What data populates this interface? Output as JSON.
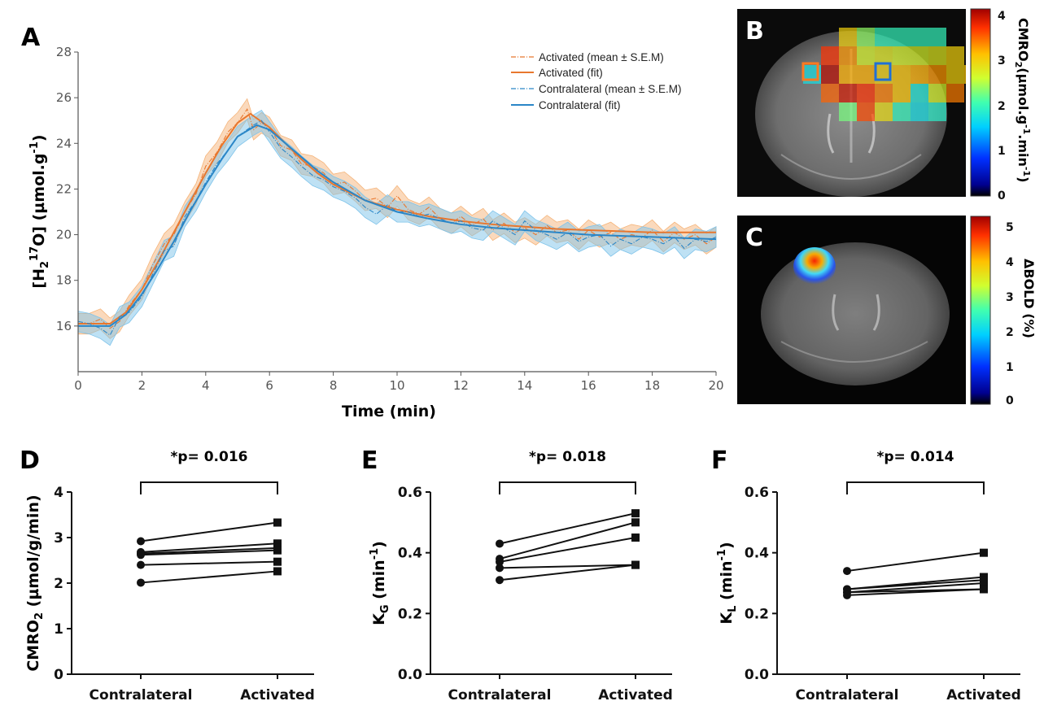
{
  "panels": {
    "A": "A",
    "B": "B",
    "C": "C",
    "D": "D",
    "E": "E",
    "F": "F"
  },
  "colors": {
    "activated": "#e8772e",
    "activated_band": "#f5b47a",
    "contralateral": "#2a86c7",
    "contralateral_band": "#7ec3ea"
  },
  "chart_data": [
    {
      "panel": "A",
      "type": "line",
      "xlabel": "Time (min)",
      "ylabel_parts": [
        "[H",
        "2",
        "17",
        "O] (µmol.g",
        "-1",
        ")"
      ],
      "xlim": [
        0,
        20
      ],
      "ylim": [
        14,
        28
      ],
      "xticks": [
        0,
        2,
        4,
        6,
        8,
        10,
        12,
        14,
        16,
        18,
        20
      ],
      "yticks": [
        16,
        18,
        20,
        22,
        24,
        26,
        28
      ],
      "legend": [
        "Activated (mean ± S.E.M)",
        "Activated (fit)",
        "Contralateral (mean ± S.E.M)",
        "Contralateral (fit)"
      ],
      "legend_position": "top-right",
      "series": [
        {
          "name": "Activated (mean ± S.E.M)",
          "style": "dashdot",
          "x": [
            0,
            0.35,
            0.7,
            1,
            1.3,
            1.6,
            2,
            2.35,
            2.7,
            3,
            3.35,
            3.7,
            4,
            4.35,
            4.7,
            5,
            5.3,
            5.5,
            5.75,
            6,
            6.35,
            6.7,
            7,
            7.35,
            7.7,
            8,
            8.35,
            8.7,
            9,
            9.35,
            9.7,
            10,
            10.35,
            10.7,
            11,
            11.35,
            11.7,
            12,
            12.35,
            12.7,
            13,
            13.35,
            13.7,
            14,
            14.35,
            14.7,
            15,
            15.35,
            15.7,
            16,
            16.35,
            16.7,
            17,
            17.35,
            17.7,
            18,
            18.35,
            18.7,
            19,
            19.35,
            19.7,
            20
          ],
          "y": [
            16.1,
            16.1,
            16.3,
            15.9,
            16.2,
            16.9,
            17.6,
            18.7,
            19.6,
            20.0,
            21.0,
            21.8,
            23.0,
            23.6,
            24.5,
            24.9,
            25.5,
            24.6,
            24.9,
            24.7,
            23.9,
            23.7,
            23.1,
            23.0,
            22.7,
            22.2,
            22.3,
            21.9,
            21.5,
            21.6,
            21.2,
            21.7,
            21.1,
            20.9,
            21.2,
            20.7,
            20.5,
            20.8,
            20.4,
            20.7,
            20.2,
            20.5,
            20.1,
            20.3,
            20.0,
            20.4,
            20.1,
            20.2,
            19.8,
            20.2,
            19.9,
            20.1,
            19.8,
            20.0,
            19.9,
            20.2,
            19.7,
            20.1,
            19.8,
            20.0,
            19.6,
            19.9
          ],
          "sem": 0.45
        },
        {
          "name": "Activated (fit)",
          "style": "solid",
          "x": [
            0,
            0.5,
            1,
            1.5,
            2,
            2.5,
            3,
            3.5,
            4,
            4.5,
            5,
            5.4,
            6,
            6.5,
            7,
            7.5,
            8,
            9,
            10,
            11,
            12,
            13,
            14,
            15,
            16,
            17,
            18,
            19,
            20
          ],
          "y": [
            16.1,
            16.1,
            16.1,
            16.6,
            17.6,
            18.8,
            20.1,
            21.4,
            22.7,
            23.9,
            24.9,
            25.3,
            24.7,
            24.0,
            23.3,
            22.7,
            22.2,
            21.5,
            21.1,
            20.8,
            20.6,
            20.45,
            20.35,
            20.25,
            20.2,
            20.15,
            20.1,
            20.1,
            20.1
          ]
        },
        {
          "name": "Contralateral (mean ± S.E.M)",
          "style": "dashdot",
          "x": [
            0,
            0.35,
            0.7,
            1,
            1.3,
            1.6,
            2,
            2.35,
            2.7,
            3,
            3.35,
            3.7,
            4,
            4.35,
            4.7,
            5,
            5.3,
            5.5,
            5.75,
            6,
            6.35,
            6.7,
            7,
            7.35,
            7.7,
            8,
            8.35,
            8.7,
            9,
            9.35,
            9.7,
            10,
            10.35,
            10.7,
            11,
            11.35,
            11.7,
            12,
            12.35,
            12.7,
            13,
            13.35,
            13.7,
            14,
            14.35,
            14.7,
            15,
            15.35,
            15.7,
            16,
            16.35,
            16.7,
            17,
            17.35,
            17.7,
            18,
            18.35,
            18.7,
            19,
            19.35,
            19.7,
            20
          ],
          "y": [
            16.2,
            16.1,
            15.9,
            15.6,
            16.4,
            16.6,
            17.3,
            18.3,
            19.3,
            19.5,
            20.8,
            21.5,
            22.3,
            23.1,
            23.7,
            24.3,
            24.6,
            24.8,
            25.0,
            24.5,
            23.8,
            23.4,
            23.0,
            22.6,
            22.4,
            22.1,
            21.9,
            21.6,
            21.2,
            20.9,
            21.3,
            21.0,
            21.0,
            20.8,
            20.9,
            20.7,
            20.5,
            20.6,
            20.3,
            20.2,
            20.6,
            20.3,
            20.0,
            20.6,
            20.2,
            20.0,
            19.8,
            20.1,
            19.7,
            19.9,
            20.0,
            19.5,
            19.8,
            19.6,
            19.9,
            19.8,
            19.6,
            19.9,
            19.4,
            19.8,
            19.7,
            19.9
          ],
          "sem": 0.45
        },
        {
          "name": "Contralateral (fit)",
          "style": "solid",
          "x": [
            0,
            0.5,
            1,
            1.5,
            2,
            2.5,
            3,
            3.5,
            4,
            4.5,
            5,
            5.6,
            6,
            6.5,
            7,
            7.5,
            8,
            9,
            10,
            11,
            12,
            13,
            14,
            15,
            16,
            17,
            18,
            19,
            20
          ],
          "y": [
            16.0,
            16.0,
            16.0,
            16.5,
            17.4,
            18.5,
            19.7,
            21.0,
            22.2,
            23.3,
            24.3,
            24.8,
            24.6,
            24.0,
            23.4,
            22.8,
            22.3,
            21.5,
            21.0,
            20.7,
            20.45,
            20.3,
            20.2,
            20.1,
            20.0,
            19.95,
            19.9,
            19.85,
            19.8
          ]
        }
      ]
    },
    {
      "panel": "B",
      "type": "heatmap",
      "colorbar_ticks": [
        "0",
        "1",
        "2",
        "3",
        "4"
      ],
      "colorbar_range": [
        0,
        4
      ],
      "colorbar_title_parts": [
        "CMRO",
        "2",
        "(µmol.g",
        "-1",
        ".min",
        "-1",
        ")"
      ],
      "voxel_values": [
        [
          null,
          null,
          null,
          null,
          2.9,
          2.3,
          1.9,
          1.9,
          1.9,
          1.9,
          null,
          null,
          null
        ],
        [
          null,
          null,
          null,
          3.6,
          3.2,
          2.6,
          2.7,
          2.6,
          2.6,
          2.7,
          2.9,
          null,
          null
        ],
        [
          null,
          null,
          1.6,
          3.9,
          3.1,
          3.1,
          2.9,
          3.0,
          3.1,
          3.2,
          2.9,
          3.0,
          null
        ],
        [
          null,
          null,
          null,
          3.4,
          3.8,
          3.6,
          3.3,
          3.0,
          1.7,
          2.6,
          3.3,
          null,
          null
        ],
        [
          null,
          null,
          null,
          null,
          2.2,
          3.5,
          2.8,
          1.9,
          1.6,
          1.8,
          null,
          null,
          null
        ]
      ]
    },
    {
      "panel": "C",
      "type": "heatmap",
      "colorbar_ticks": [
        "0",
        "1",
        "2",
        "3",
        "4",
        "5"
      ],
      "colorbar_range": [
        0,
        5.2
      ],
      "colorbar_title": "ΔBOLD (%)"
    },
    {
      "panel": "D",
      "type": "scatter",
      "categories": [
        "Contralateral",
        "Activated"
      ],
      "ylabel_parts": [
        "CMRO",
        "2",
        " (µmol/g/min)"
      ],
      "ylim": [
        0,
        4
      ],
      "yticks": [
        "0",
        "1",
        "2",
        "3",
        "4"
      ],
      "pvalue": "*p= 0.016",
      "pairs": [
        [
          2.92,
          3.33
        ],
        [
          2.68,
          2.87
        ],
        [
          2.65,
          2.77
        ],
        [
          2.62,
          2.72
        ],
        [
          2.4,
          2.47
        ],
        [
          2.01,
          2.26
        ]
      ]
    },
    {
      "panel": "E",
      "type": "scatter",
      "categories": [
        "Contralateral",
        "Activated"
      ],
      "ylabel_parts": [
        "K",
        "G",
        " (min",
        "-1",
        ")"
      ],
      "ylim": [
        0,
        0.6
      ],
      "yticks": [
        "0.0",
        "0.2",
        "0.4",
        "0.6"
      ],
      "pvalue": "*p= 0.018",
      "pairs": [
        [
          0.43,
          0.53
        ],
        [
          0.38,
          0.5
        ],
        [
          0.37,
          0.45
        ],
        [
          0.35,
          0.36
        ],
        [
          0.31,
          0.36
        ]
      ]
    },
    {
      "panel": "F",
      "type": "scatter",
      "categories": [
        "Contralateral",
        "Activated"
      ],
      "ylabel_parts": [
        "K",
        "L",
        " (min",
        "-1",
        ")"
      ],
      "ylim": [
        0,
        0.6
      ],
      "yticks": [
        "0.0",
        "0.2",
        "0.4",
        "0.6"
      ],
      "pvalue": "*p= 0.014",
      "pairs": [
        [
          0.34,
          0.4
        ],
        [
          0.28,
          0.32
        ],
        [
          0.28,
          0.31
        ],
        [
          0.27,
          0.3
        ],
        [
          0.27,
          0.28
        ],
        [
          0.26,
          0.28
        ]
      ]
    }
  ]
}
